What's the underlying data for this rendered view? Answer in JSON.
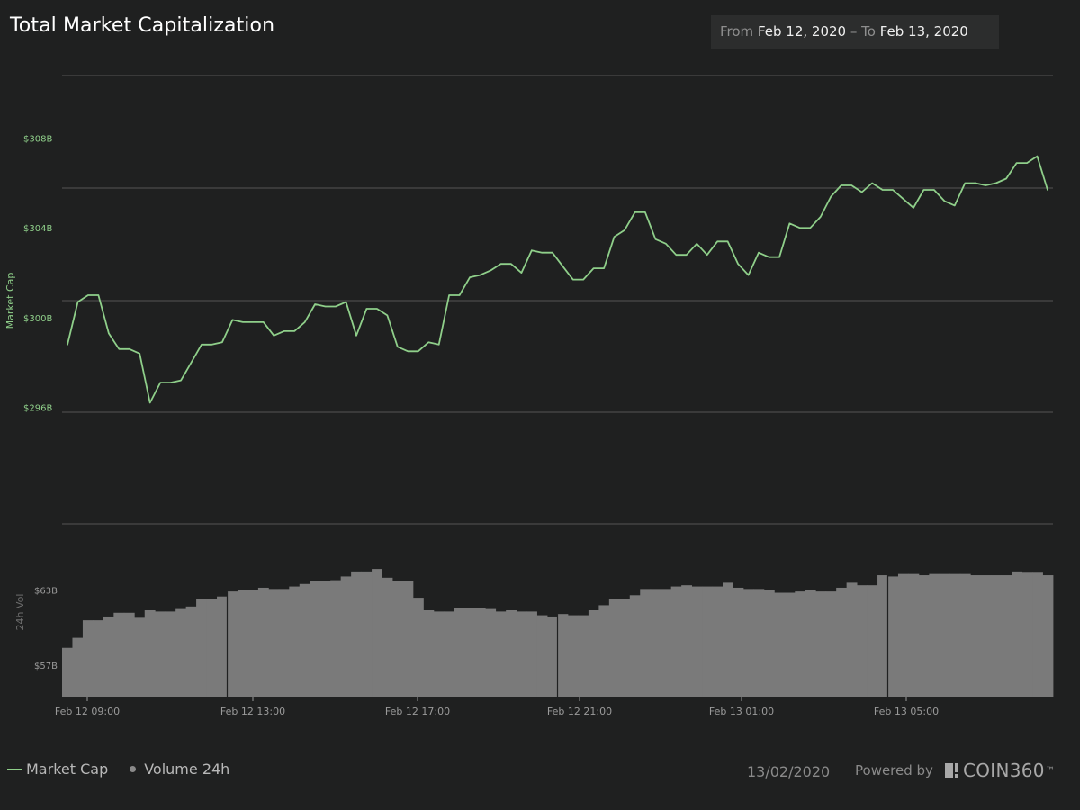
{
  "header": {
    "title": "Total Market Capitalization",
    "range_from_label": "From",
    "range_from": "Feb 12, 2020",
    "range_sep": "–",
    "range_to_label": "To",
    "range_to": "Feb 13, 2020"
  },
  "footer": {
    "legend_market_cap": "Market Cap",
    "legend_volume": "Volume 24h",
    "date": "13/02/2020",
    "powered_by": "Powered by",
    "brand": "COIN360",
    "brand_tm": "™"
  },
  "colors": {
    "background": "#1f2020",
    "market_cap_line": "#8fcf8a",
    "volume_bar": "#7a7a7a",
    "grid": "#555555",
    "axis_text": "#9a9a9a"
  },
  "chart_data": [
    {
      "type": "line",
      "ylabel": "Market Cap",
      "yticks": [
        "$296B",
        "$300B",
        "$304B",
        "$308B"
      ],
      "ytick_values": [
        296,
        300,
        304,
        308
      ],
      "ylim": [
        292,
        312
      ],
      "grid": true,
      "series": [
        {
          "name": "Market Cap",
          "values": [
            300.0,
            301.9,
            302.2,
            302.2,
            300.5,
            299.8,
            299.8,
            299.6,
            297.4,
            298.3,
            298.3,
            298.4,
            299.2,
            300.0,
            300.0,
            300.1,
            301.1,
            301.0,
            301.0,
            301.0,
            300.4,
            300.6,
            300.6,
            301.0,
            301.8,
            301.7,
            301.7,
            301.9,
            300.4,
            301.6,
            301.6,
            301.3,
            299.9,
            299.7,
            299.7,
            300.1,
            300.0,
            302.2,
            302.2,
            303.0,
            303.1,
            303.3,
            303.6,
            303.6,
            303.2,
            304.2,
            304.1,
            304.1,
            303.5,
            302.9,
            302.9,
            303.4,
            303.4,
            304.8,
            305.1,
            305.9,
            305.9,
            304.7,
            304.5,
            304.0,
            304.0,
            304.5,
            304.0,
            304.6,
            304.6,
            303.6,
            303.1,
            304.1,
            303.9,
            303.9,
            305.4,
            305.2,
            305.2,
            305.7,
            306.6,
            307.1,
            307.1,
            306.8,
            307.2,
            306.9,
            306.9,
            306.5,
            306.1,
            306.9,
            306.9,
            306.4,
            306.2,
            307.2,
            307.2,
            307.1,
            307.2,
            307.4,
            308.1,
            308.1,
            308.4,
            306.9
          ]
        }
      ]
    },
    {
      "type": "bar",
      "ylabel": "24h Vol",
      "yticks": [
        "$57B",
        "$63B"
      ],
      "ytick_values": [
        57,
        63
      ],
      "ylim": [
        54.5,
        68.3
      ],
      "xticks": [
        "Feb 12 09:00",
        "Feb 12 13:00",
        "Feb 12 17:00",
        "Feb 12 21:00",
        "Feb 13 01:00",
        "Feb 13 05:00"
      ],
      "series": [
        {
          "name": "Volume 24h",
          "values": [
            58.4,
            59.2,
            60.6,
            60.6,
            60.9,
            61.2,
            61.2,
            60.8,
            61.4,
            61.3,
            61.3,
            61.5,
            61.7,
            62.3,
            62.3,
            62.5,
            62.9,
            63.0,
            63.0,
            63.2,
            63.1,
            63.1,
            63.3,
            63.5,
            63.7,
            63.7,
            63.8,
            64.1,
            64.5,
            64.5,
            64.7,
            64.0,
            63.7,
            63.7,
            62.4,
            61.4,
            61.3,
            61.3,
            61.6,
            61.6,
            61.6,
            61.5,
            61.3,
            61.4,
            61.3,
            61.3,
            61.0,
            60.9,
            61.1,
            61.0,
            61.0,
            61.4,
            61.8,
            62.3,
            62.3,
            62.6,
            63.1,
            63.1,
            63.1,
            63.3,
            63.4,
            63.3,
            63.3,
            63.3,
            63.6,
            63.2,
            63.1,
            63.1,
            63.0,
            62.8,
            62.8,
            62.9,
            63.0,
            62.9,
            62.9,
            63.2,
            63.6,
            63.4,
            63.4,
            64.2,
            64.1,
            64.3,
            64.3,
            64.2,
            64.3,
            64.3,
            64.3,
            64.3,
            64.2,
            64.2,
            64.2,
            64.2,
            64.5,
            64.4,
            64.4,
            64.2
          ]
        }
      ],
      "markers_after_bars": [
        16,
        48,
        80
      ]
    }
  ]
}
